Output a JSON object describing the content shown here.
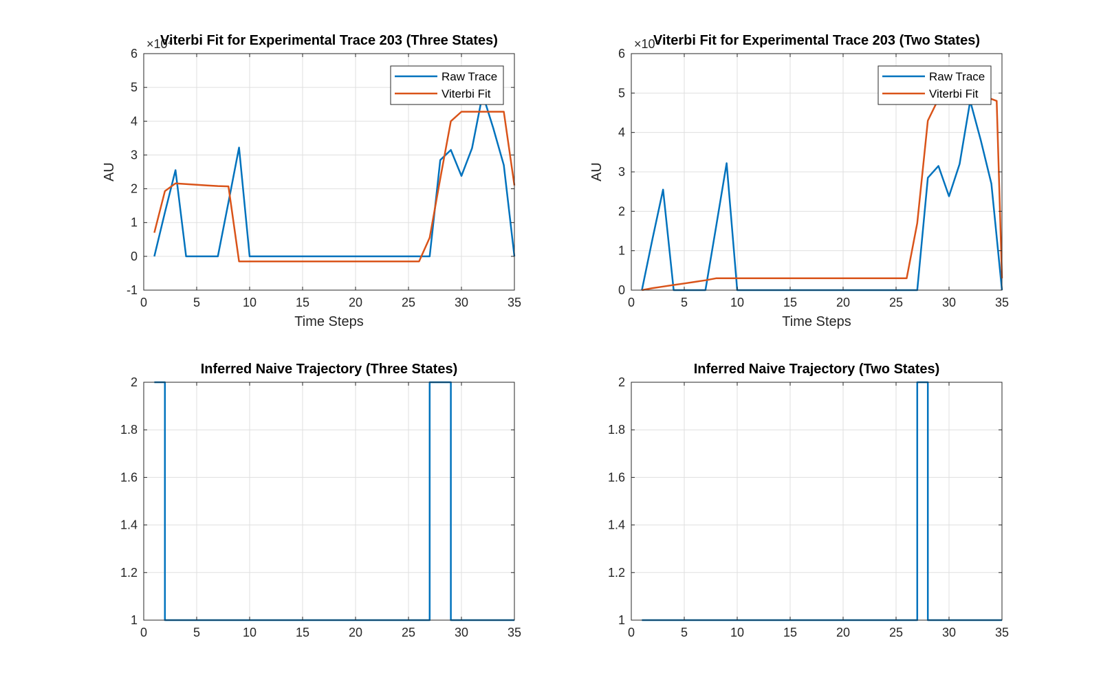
{
  "figure": {
    "colors": {
      "raw": "#0072BD",
      "viterbi": "#D95319"
    },
    "panels": [
      {
        "id": "three-states-fit",
        "title": "Viterbi Fit for Experimental Trace 203 (Three States)",
        "xlabel": "Time Steps",
        "ylabel": "AU",
        "exponent_label": "×10⁴",
        "legend": {
          "position": "top-right",
          "entries": [
            "Raw Trace",
            "Viterbi Fit"
          ]
        },
        "grid": true,
        "xlim": [
          0,
          35
        ],
        "ylim": [
          -1,
          6
        ],
        "xticks": [
          0,
          5,
          10,
          15,
          20,
          25,
          30,
          35
        ],
        "yticks": [
          -1,
          0,
          1,
          2,
          3,
          4,
          5,
          6
        ],
        "ytick_labels": [
          "-1",
          "0",
          "1",
          "2",
          "3",
          "4",
          "5",
          "6"
        ],
        "chart_data": {
          "type": "line",
          "units_note_multiplier": 10000,
          "series": [
            {
              "name": "Raw Trace",
              "color_key": "raw",
              "x": [
                1,
                2,
                3,
                4,
                5,
                6,
                7,
                8,
                9,
                10,
                11,
                12,
                13,
                14,
                15,
                16,
                17,
                18,
                19,
                20,
                21,
                22,
                23,
                24,
                25,
                26,
                27,
                28,
                29,
                30,
                31,
                32,
                33,
                34,
                35
              ],
              "y": [
                0,
                1.3,
                2.55,
                0,
                0,
                0,
                0,
                1.6,
                3.22,
                0,
                0,
                0,
                0,
                0,
                0,
                0,
                0,
                0,
                0,
                0,
                0,
                0,
                0,
                0,
                0,
                0,
                0,
                2.85,
                3.15,
                2.38,
                3.2,
                4.8,
                3.8,
                2.7,
                0
              ]
            },
            {
              "name": "Viterbi Fit",
              "color_key": "viterbi",
              "x": [
                1,
                2,
                3,
                4,
                5,
                6,
                7,
                8,
                9,
                10,
                11,
                12,
                13,
                14,
                15,
                16,
                17,
                18,
                19,
                20,
                21,
                22,
                23,
                24,
                25,
                26,
                27,
                28,
                29,
                30,
                31,
                32,
                33,
                34,
                35
              ],
              "y": [
                0.7,
                1.93,
                2.16,
                2.14,
                2.12,
                2.1,
                2.08,
                2.07,
                -0.15,
                -0.15,
                -0.15,
                -0.15,
                -0.15,
                -0.15,
                -0.15,
                -0.15,
                -0.15,
                -0.15,
                -0.15,
                -0.15,
                -0.15,
                -0.15,
                -0.15,
                -0.15,
                -0.15,
                -0.15,
                0.55,
                2.3,
                4.0,
                4.28,
                4.28,
                4.28,
                4.28,
                4.28,
                2.1
              ]
            }
          ]
        }
      },
      {
        "id": "two-states-fit",
        "title": "Viterbi Fit for Experimental Trace  203 (Two States)",
        "xlabel": "Time Steps",
        "ylabel": "AU",
        "exponent_label": "×10⁴",
        "legend": {
          "position": "top-right",
          "entries": [
            "Raw Trace",
            "Viterbi Fit"
          ]
        },
        "grid": true,
        "xlim": [
          0,
          35
        ],
        "ylim": [
          0,
          6
        ],
        "xticks": [
          0,
          5,
          10,
          15,
          20,
          25,
          30,
          35
        ],
        "yticks": [
          0,
          1,
          2,
          3,
          4,
          5,
          6
        ],
        "ytick_labels": [
          "0",
          "1",
          "2",
          "3",
          "4",
          "5",
          "6"
        ],
        "chart_data": {
          "type": "line",
          "units_note_multiplier": 10000,
          "series": [
            {
              "name": "Raw Trace",
              "color_key": "raw",
              "x": [
                1,
                2,
                3,
                4,
                5,
                6,
                7,
                8,
                9,
                10,
                11,
                12,
                13,
                14,
                15,
                16,
                17,
                18,
                19,
                20,
                21,
                22,
                23,
                24,
                25,
                26,
                27,
                28,
                29,
                30,
                31,
                32,
                33,
                34,
                35
              ],
              "y": [
                0,
                1.3,
                2.55,
                0,
                0,
                0,
                0,
                1.6,
                3.22,
                0,
                0,
                0,
                0,
                0,
                0,
                0,
                0,
                0,
                0,
                0,
                0,
                0,
                0,
                0,
                0,
                0,
                0,
                2.85,
                3.15,
                2.38,
                3.2,
                4.8,
                3.8,
                2.7,
                0
              ]
            },
            {
              "name": "Viterbi Fit",
              "color_key": "viterbi",
              "x": [
                1,
                2,
                3,
                4,
                5,
                6,
                7,
                8,
                9,
                10,
                11,
                12,
                13,
                14,
                15,
                16,
                17,
                18,
                19,
                20,
                21,
                22,
                23,
                24,
                25,
                26,
                27,
                28,
                29,
                30,
                31,
                32,
                33,
                34,
                34.5,
                35
              ],
              "y": [
                0,
                0.05,
                0.09,
                0.13,
                0.17,
                0.21,
                0.25,
                0.3,
                0.3,
                0.3,
                0.3,
                0.3,
                0.3,
                0.3,
                0.3,
                0.3,
                0.3,
                0.3,
                0.3,
                0.3,
                0.3,
                0.3,
                0.3,
                0.3,
                0.3,
                0.3,
                1.7,
                4.3,
                4.85,
                4.85,
                4.85,
                4.85,
                4.85,
                4.85,
                4.8,
                0.3
              ]
            }
          ]
        }
      },
      {
        "id": "three-states-trajectory",
        "title": "Inferred Naive Trajectory (Three States)",
        "xlabel": "",
        "ylabel": "",
        "exponent_label": "",
        "grid": true,
        "xlim": [
          0,
          35
        ],
        "ylim": [
          1,
          2
        ],
        "xticks": [
          0,
          5,
          10,
          15,
          20,
          25,
          30,
          35
        ],
        "yticks": [
          1,
          1.2,
          1.4,
          1.6,
          1.8,
          2
        ],
        "ytick_labels": [
          "1",
          "1.2",
          "1.4",
          "1.6",
          "1.8",
          "2"
        ],
        "chart_data": {
          "type": "line",
          "series": [
            {
              "color_key": "raw",
              "x": [
                1,
                2,
                2,
                27,
                27,
                29,
                29,
                35
              ],
              "y": [
                2,
                2,
                1,
                1,
                2,
                2,
                1,
                1
              ]
            }
          ]
        }
      },
      {
        "id": "two-states-trajectory",
        "title": "Inferred Naive Trajectory (Two States)",
        "xlabel": "",
        "ylabel": "",
        "exponent_label": "",
        "grid": true,
        "xlim": [
          0,
          35
        ],
        "ylim": [
          1,
          2
        ],
        "xticks": [
          0,
          5,
          10,
          15,
          20,
          25,
          30,
          35
        ],
        "yticks": [
          1,
          1.2,
          1.4,
          1.6,
          1.8,
          2
        ],
        "ytick_labels": [
          "1",
          "1.2",
          "1.4",
          "1.6",
          "1.8",
          "2"
        ],
        "chart_data": {
          "type": "line",
          "series": [
            {
              "color_key": "raw",
              "x": [
                1,
                27,
                27,
                28,
                28,
                35
              ],
              "y": [
                1,
                1,
                2,
                2,
                1,
                1
              ]
            }
          ]
        }
      }
    ]
  }
}
